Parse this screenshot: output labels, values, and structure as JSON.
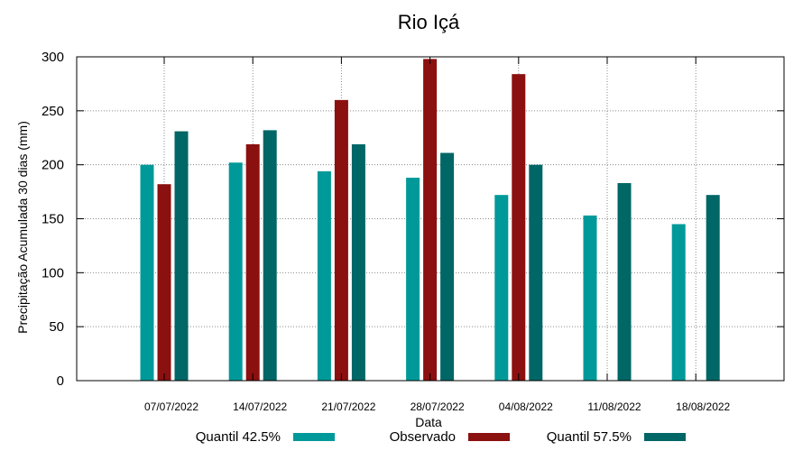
{
  "chart_data": {
    "type": "bar",
    "title": "Rio Içá",
    "xlabel": "Data",
    "ylabel": "Precipitação Acumulada 30 dias (mm)",
    "ylim": [
      0,
      300
    ],
    "yticks": [
      0,
      50,
      100,
      150,
      200,
      250,
      300
    ],
    "grid": true,
    "legend_position": "bottom",
    "categories": [
      "07/07/2022",
      "14/07/2022",
      "21/07/2022",
      "28/07/2022",
      "04/08/2022",
      "11/08/2022",
      "18/08/2022"
    ],
    "series": [
      {
        "name": "Quantil 42.5%",
        "color": "#009999",
        "values": [
          200,
          202,
          194,
          188,
          172,
          153,
          145
        ]
      },
      {
        "name": "Observado",
        "color": "#8b1010",
        "values": [
          182,
          219,
          260,
          298,
          284,
          null,
          null
        ]
      },
      {
        "name": "Quantil 57.5%",
        "color": "#006666",
        "values": [
          231,
          232,
          219,
          211,
          200,
          183,
          172
        ]
      }
    ]
  }
}
